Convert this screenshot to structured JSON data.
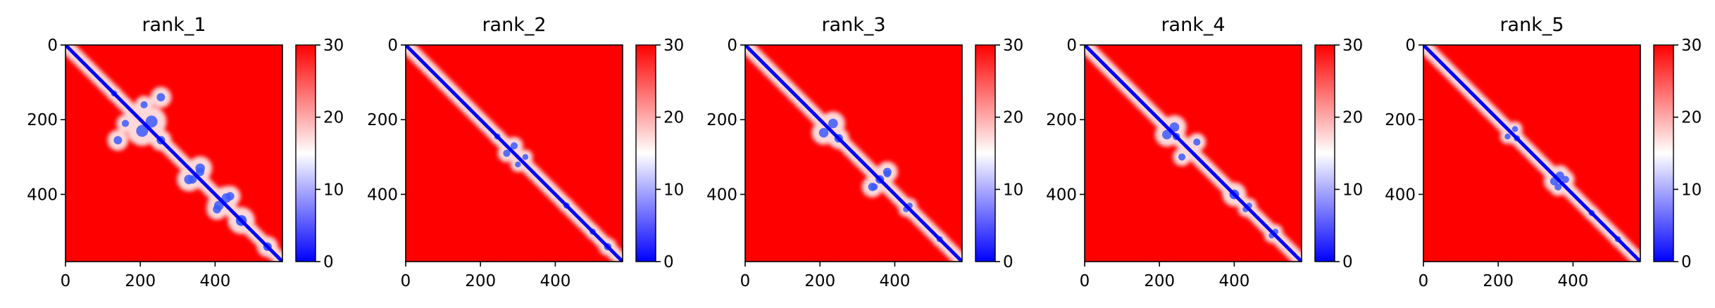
{
  "chart_data": [
    {
      "type": "heatmap",
      "title": "rank_1",
      "n": 580,
      "xticks": [
        0,
        200,
        400
      ],
      "yticks": [
        0,
        200,
        400
      ],
      "colorbar": {
        "vmin": 0,
        "vmax": 30,
        "ticks": [
          0,
          10,
          20,
          30
        ],
        "colors": [
          "#0000ff",
          "#ffffff",
          "#ff0000"
        ]
      }
    },
    {
      "type": "heatmap",
      "title": "rank_2",
      "n": 580,
      "xticks": [
        0,
        200,
        400
      ],
      "yticks": [
        0,
        200,
        400
      ],
      "colorbar": {
        "vmin": 0,
        "vmax": 30,
        "ticks": [
          0,
          10,
          20,
          30
        ],
        "colors": [
          "#0000ff",
          "#ffffff",
          "#ff0000"
        ]
      }
    },
    {
      "type": "heatmap",
      "title": "rank_3",
      "n": 580,
      "xticks": [
        0,
        200,
        400
      ],
      "yticks": [
        0,
        200,
        400
      ],
      "colorbar": {
        "vmin": 0,
        "vmax": 30,
        "ticks": [
          0,
          10,
          20,
          30
        ],
        "colors": [
          "#0000ff",
          "#ffffff",
          "#ff0000"
        ]
      }
    },
    {
      "type": "heatmap",
      "title": "rank_4",
      "n": 580,
      "xticks": [
        0,
        200,
        400
      ],
      "yticks": [
        0,
        200,
        400
      ],
      "colorbar": {
        "vmin": 0,
        "vmax": 30,
        "ticks": [
          0,
          10,
          20,
          30
        ],
        "colors": [
          "#0000ff",
          "#ffffff",
          "#ff0000"
        ]
      }
    },
    {
      "type": "heatmap",
      "title": "rank_5",
      "n": 580,
      "xticks": [
        0,
        200,
        400
      ],
      "yticks": [
        0,
        200,
        400
      ],
      "colorbar": {
        "vmin": 0,
        "vmax": 30,
        "ticks": [
          0,
          10,
          20,
          30
        ],
        "colors": [
          "#0000ff",
          "#ffffff",
          "#ff0000"
        ]
      }
    }
  ]
}
